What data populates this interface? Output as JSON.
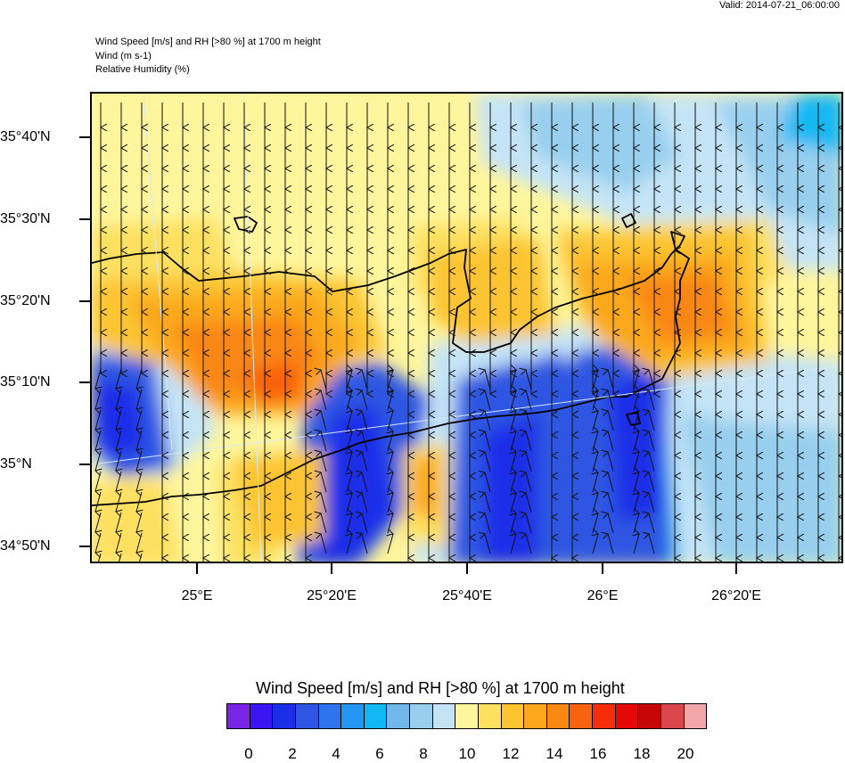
{
  "valid": "Valid: 2014-07-21_06:00:00",
  "header": {
    "line1": "Wind Speed [m/s] and RH [>80 %] at 1700 m height",
    "line2": "Wind   (m s-1)",
    "line3": "Relative Humidity   (%)"
  },
  "lat_labels": [
    "35°40'N",
    "35°30'N",
    "35°20'N",
    "35°10'N",
    "35°N",
    "34°50'N"
  ],
  "lon_labels": [
    "25°E",
    "25°20'E",
    "25°40'E",
    "26°E",
    "26°20'E"
  ],
  "colorbar": {
    "title": "Wind Speed [m/s] and RH [>80 %] at 1700 m height",
    "labels": [
      "0",
      "2",
      "4",
      "6",
      "8",
      "10",
      "12",
      "14",
      "16",
      "18",
      "20"
    ],
    "colors": [
      "#7a24e8",
      "#3c16f2",
      "#1e2ee8",
      "#2f56e2",
      "#2e74ec",
      "#2596f4",
      "#12b8f4",
      "#70b8ec",
      "#98cfee",
      "#c4e4f6",
      "#fff59c",
      "#fde060",
      "#fcc430",
      "#fba81e",
      "#f98714",
      "#f9620f",
      "#f52d0b",
      "#e40808",
      "#c70707",
      "#d8474c",
      "#f3a6a8"
    ]
  },
  "map_colors": {
    "pale_yellow": "#fff59c",
    "yellow": "#fde060",
    "gold": "#fcc430",
    "orange": "#fba81e",
    "dark_orange": "#f98714",
    "red_orange": "#f9620f",
    "light_blue": "#c4e4f6",
    "sky": "#98cfee",
    "cyan": "#12b8f4",
    "blue": "#2f56e2",
    "deep_blue": "#1e2ee8"
  }
}
